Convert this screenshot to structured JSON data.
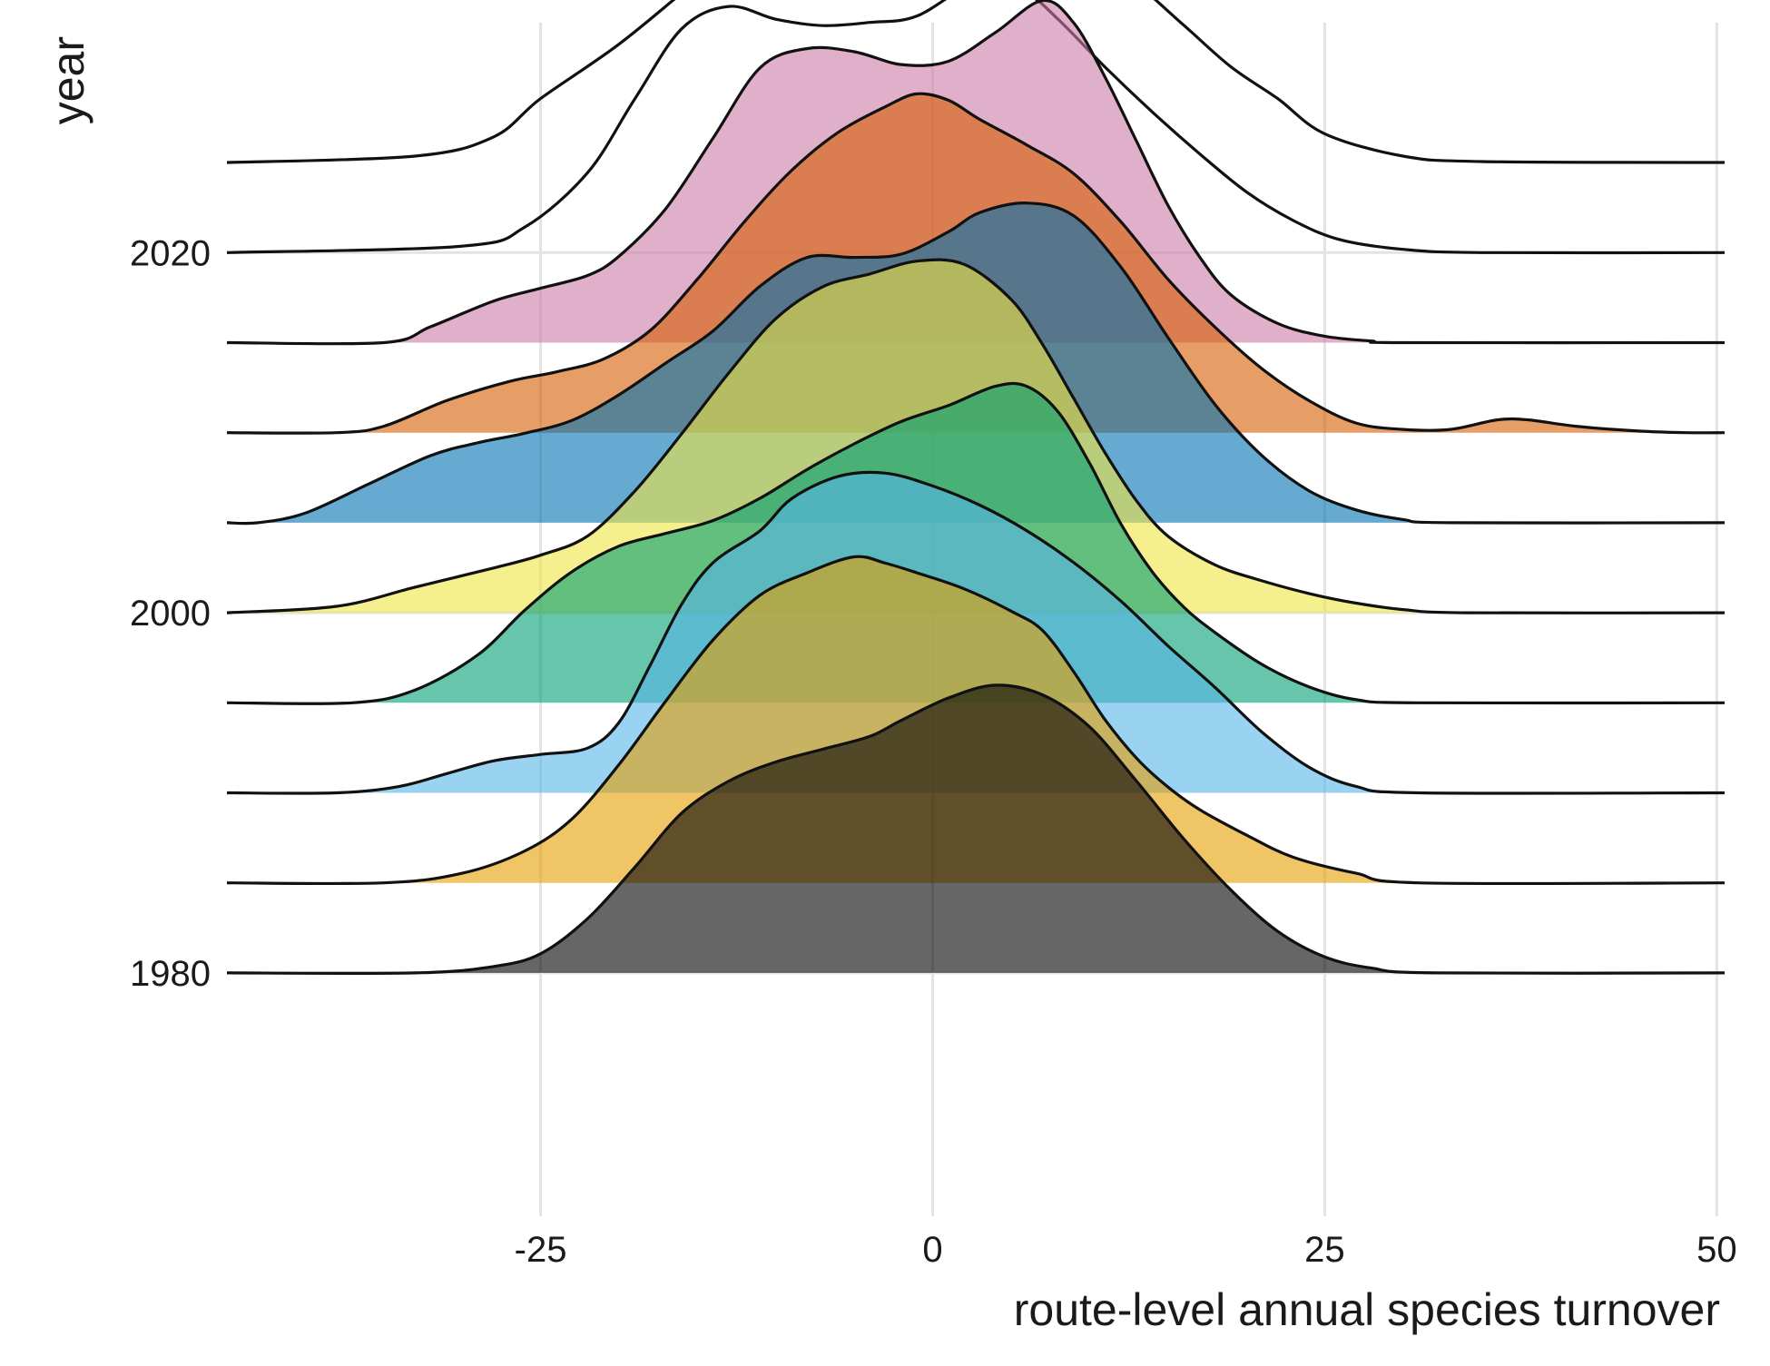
{
  "chart_data": {
    "type": "ridgeline",
    "xlabel": "route-level annual species turnover",
    "ylabel": "year",
    "xlim": [
      -45,
      50.5
    ],
    "ylim": [
      1968,
      2031
    ],
    "x_ticks": [
      -25,
      0,
      25,
      50
    ],
    "x_tick_labels": [
      "-25",
      "0",
      "25",
      "50"
    ],
    "y_ticks": [
      1980,
      2000,
      2020
    ],
    "y_tick_labels": [
      "1980",
      "2000",
      "2020"
    ],
    "grid": true,
    "legend": "none",
    "ridge_scale_years": 17.75,
    "series": [
      {
        "year": 2025,
        "color": "#ffffff",
        "alpha": 0,
        "points": [
          [
            -45,
            0
          ],
          [
            -33,
            0.02
          ],
          [
            -28,
            0.08
          ],
          [
            -25,
            0.2
          ],
          [
            -20,
            0.37
          ],
          [
            -15,
            0.57
          ],
          [
            -10,
            0.76
          ],
          [
            -5,
            0.93
          ],
          [
            -1.5,
            1.0
          ],
          [
            2,
            0.94
          ],
          [
            5,
            0.82
          ],
          [
            8,
            0.72
          ],
          [
            12,
            0.6
          ],
          [
            16,
            0.43
          ],
          [
            19,
            0.3
          ],
          [
            22,
            0.2
          ],
          [
            25,
            0.09
          ],
          [
            30,
            0.02
          ],
          [
            35,
            0.003
          ],
          [
            50.5,
            0
          ]
        ]
      },
      {
        "year": 2020,
        "color": "#ffffff",
        "alpha": 0,
        "points": [
          [
            -45,
            0
          ],
          [
            -30,
            0.02
          ],
          [
            -26,
            0.08
          ],
          [
            -22,
            0.25
          ],
          [
            -19,
            0.48
          ],
          [
            -16,
            0.7
          ],
          [
            -13,
            0.77
          ],
          [
            -10,
            0.73
          ],
          [
            -7,
            0.71
          ],
          [
            -4,
            0.72
          ],
          [
            -1,
            0.74
          ],
          [
            3,
            0.85
          ],
          [
            6,
            0.81
          ],
          [
            8,
            0.73
          ],
          [
            11,
            0.58
          ],
          [
            14,
            0.44
          ],
          [
            17,
            0.31
          ],
          [
            20,
            0.19
          ],
          [
            23,
            0.1
          ],
          [
            26,
            0.04
          ],
          [
            30,
            0.01
          ],
          [
            35,
            0
          ],
          [
            50.5,
            0
          ]
        ]
      },
      {
        "year": 2015,
        "color": "#CC79A7",
        "alpha": 0.6,
        "points": [
          [
            -45,
            0
          ],
          [
            -35,
            0
          ],
          [
            -32,
            0.05
          ],
          [
            -28,
            0.13
          ],
          [
            -25,
            0.17
          ],
          [
            -22,
            0.21
          ],
          [
            -20,
            0.27
          ],
          [
            -17,
            0.42
          ],
          [
            -14,
            0.64
          ],
          [
            -11,
            0.86
          ],
          [
            -8,
            0.92
          ],
          [
            -5,
            0.91
          ],
          [
            -2,
            0.87
          ],
          [
            1,
            0.88
          ],
          [
            4,
            0.97
          ],
          [
            7,
            1.07
          ],
          [
            9,
            1.0
          ],
          [
            11,
            0.83
          ],
          [
            13,
            0.63
          ],
          [
            15,
            0.43
          ],
          [
            17,
            0.27
          ],
          [
            19,
            0.15
          ],
          [
            22,
            0.06
          ],
          [
            25,
            0.02
          ],
          [
            28,
            0.005
          ],
          [
            30,
            0
          ],
          [
            50.5,
            0
          ]
        ]
      },
      {
        "year": 2010,
        "color": "#D55E00",
        "alpha": 0.6,
        "points": [
          [
            -45,
            0
          ],
          [
            -38,
            0
          ],
          [
            -35,
            0.02
          ],
          [
            -31,
            0.1
          ],
          [
            -27,
            0.16
          ],
          [
            -24,
            0.19
          ],
          [
            -21,
            0.23
          ],
          [
            -18,
            0.32
          ],
          [
            -15,
            0.48
          ],
          [
            -12,
            0.66
          ],
          [
            -9,
            0.82
          ],
          [
            -6,
            0.94
          ],
          [
            -3,
            1.02
          ],
          [
            -1,
            1.06
          ],
          [
            1,
            1.04
          ],
          [
            3,
            0.98
          ],
          [
            6,
            0.9
          ],
          [
            9,
            0.81
          ],
          [
            12,
            0.66
          ],
          [
            15,
            0.48
          ],
          [
            18,
            0.33
          ],
          [
            21,
            0.2
          ],
          [
            24,
            0.1
          ],
          [
            27,
            0.03
          ],
          [
            30,
            0.01
          ],
          [
            33,
            0.01
          ],
          [
            36,
            0.04
          ],
          [
            38,
            0.04
          ],
          [
            41,
            0.02
          ],
          [
            45,
            0.005
          ],
          [
            48,
            0
          ],
          [
            50.5,
            0
          ]
        ]
      },
      {
        "year": 2005,
        "color": "#0072B2",
        "alpha": 0.6,
        "points": [
          [
            -45,
            0
          ],
          [
            -43,
            0
          ],
          [
            -40,
            0.03
          ],
          [
            -36,
            0.12
          ],
          [
            -32,
            0.21
          ],
          [
            -29,
            0.25
          ],
          [
            -26,
            0.28
          ],
          [
            -23,
            0.32
          ],
          [
            -20,
            0.4
          ],
          [
            -17,
            0.5
          ],
          [
            -14,
            0.6
          ],
          [
            -11,
            0.74
          ],
          [
            -8,
            0.83
          ],
          [
            -5,
            0.83
          ],
          [
            -2,
            0.84
          ],
          [
            1,
            0.91
          ],
          [
            3,
            0.97
          ],
          [
            6,
            1.0
          ],
          [
            9,
            0.96
          ],
          [
            12,
            0.8
          ],
          [
            15,
            0.58
          ],
          [
            18,
            0.37
          ],
          [
            21,
            0.21
          ],
          [
            24,
            0.1
          ],
          [
            27,
            0.04
          ],
          [
            30,
            0.01
          ],
          [
            33,
            0
          ],
          [
            50.5,
            0
          ]
        ]
      },
      {
        "year": 2000,
        "color": "#F0E442",
        "alpha": 0.6,
        "points": [
          [
            -45,
            0
          ],
          [
            -38,
            0.02
          ],
          [
            -33,
            0.08
          ],
          [
            -28,
            0.14
          ],
          [
            -25,
            0.18
          ],
          [
            -22,
            0.24
          ],
          [
            -19,
            0.38
          ],
          [
            -16,
            0.56
          ],
          [
            -13,
            0.75
          ],
          [
            -10,
            0.92
          ],
          [
            -7,
            1.02
          ],
          [
            -4,
            1.06
          ],
          [
            -1,
            1.1
          ],
          [
            2,
            1.09
          ],
          [
            5,
            0.98
          ],
          [
            7,
            0.84
          ],
          [
            9,
            0.67
          ],
          [
            11,
            0.5
          ],
          [
            13,
            0.35
          ],
          [
            15,
            0.24
          ],
          [
            18,
            0.15
          ],
          [
            21,
            0.1
          ],
          [
            24,
            0.06
          ],
          [
            27,
            0.03
          ],
          [
            30,
            0.01
          ],
          [
            34,
            0
          ],
          [
            50.5,
            0
          ]
        ]
      },
      {
        "year": 1995,
        "color": "#009E73",
        "alpha": 0.6,
        "points": [
          [
            -45,
            0
          ],
          [
            -37,
            0
          ],
          [
            -33,
            0.04
          ],
          [
            -29,
            0.15
          ],
          [
            -26,
            0.29
          ],
          [
            -23,
            0.41
          ],
          [
            -20,
            0.49
          ],
          [
            -17,
            0.53
          ],
          [
            -14,
            0.57
          ],
          [
            -11,
            0.64
          ],
          [
            -8,
            0.73
          ],
          [
            -5,
            0.81
          ],
          [
            -2,
            0.88
          ],
          [
            1,
            0.93
          ],
          [
            4,
            0.99
          ],
          [
            6,
            0.99
          ],
          [
            8,
            0.91
          ],
          [
            10,
            0.75
          ],
          [
            12,
            0.56
          ],
          [
            14,
            0.41
          ],
          [
            16,
            0.3
          ],
          [
            18,
            0.22
          ],
          [
            21,
            0.12
          ],
          [
            24,
            0.05
          ],
          [
            27,
            0.01
          ],
          [
            31,
            0
          ],
          [
            50.5,
            0
          ]
        ]
      },
      {
        "year": 1990,
        "color": "#56B4E9",
        "alpha": 0.6,
        "points": [
          [
            -45,
            0
          ],
          [
            -38,
            0
          ],
          [
            -34,
            0.02
          ],
          [
            -31,
            0.06
          ],
          [
            -28,
            0.1
          ],
          [
            -25,
            0.12
          ],
          [
            -22,
            0.14
          ],
          [
            -20,
            0.22
          ],
          [
            -18,
            0.4
          ],
          [
            -16,
            0.59
          ],
          [
            -14,
            0.72
          ],
          [
            -11,
            0.82
          ],
          [
            -9,
            0.92
          ],
          [
            -6,
            0.99
          ],
          [
            -3,
            1.0
          ],
          [
            0,
            0.96
          ],
          [
            3,
            0.9
          ],
          [
            6,
            0.82
          ],
          [
            9,
            0.72
          ],
          [
            12,
            0.6
          ],
          [
            15,
            0.46
          ],
          [
            18,
            0.33
          ],
          [
            21,
            0.19
          ],
          [
            24,
            0.08
          ],
          [
            27,
            0.02
          ],
          [
            31,
            0
          ],
          [
            50.5,
            0
          ]
        ]
      },
      {
        "year": 1985,
        "color": "#E69F00",
        "alpha": 0.6,
        "points": [
          [
            -45,
            0
          ],
          [
            -35,
            0
          ],
          [
            -30,
            0.03
          ],
          [
            -26,
            0.1
          ],
          [
            -23,
            0.2
          ],
          [
            -20,
            0.37
          ],
          [
            -17,
            0.57
          ],
          [
            -14,
            0.76
          ],
          [
            -11,
            0.9
          ],
          [
            -8,
            0.97
          ],
          [
            -5,
            1.02
          ],
          [
            -3,
            1.0
          ],
          [
            -1,
            0.97
          ],
          [
            2,
            0.92
          ],
          [
            5,
            0.85
          ],
          [
            7,
            0.79
          ],
          [
            9,
            0.66
          ],
          [
            11,
            0.51
          ],
          [
            13,
            0.39
          ],
          [
            15,
            0.3
          ],
          [
            17,
            0.23
          ],
          [
            20,
            0.15
          ],
          [
            23,
            0.08
          ],
          [
            27,
            0.03
          ],
          [
            31,
            0
          ],
          [
            50.5,
            0
          ]
        ]
      },
      {
        "year": 1980,
        "color": "#000000",
        "alpha": 0.6,
        "points": [
          [
            -45,
            0
          ],
          [
            -33,
            0
          ],
          [
            -28,
            0.02
          ],
          [
            -25,
            0.06
          ],
          [
            -22,
            0.17
          ],
          [
            -19,
            0.33
          ],
          [
            -16,
            0.5
          ],
          [
            -13,
            0.6
          ],
          [
            -10,
            0.66
          ],
          [
            -7,
            0.7
          ],
          [
            -4,
            0.74
          ],
          [
            -2,
            0.79
          ],
          [
            1,
            0.86
          ],
          [
            4,
            0.9
          ],
          [
            7,
            0.87
          ],
          [
            10,
            0.77
          ],
          [
            13,
            0.6
          ],
          [
            16,
            0.42
          ],
          [
            19,
            0.26
          ],
          [
            22,
            0.13
          ],
          [
            25,
            0.05
          ],
          [
            28,
            0.015
          ],
          [
            32,
            0
          ],
          [
            50.5,
            0
          ]
        ]
      }
    ]
  }
}
